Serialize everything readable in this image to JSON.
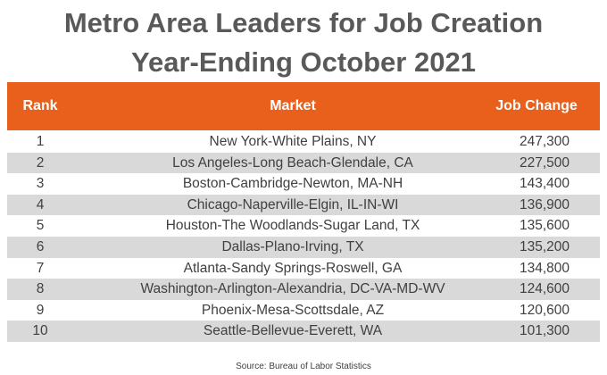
{
  "header": {
    "title_lines": [
      "Metro Area Leaders for Job Creation",
      "Year-Ending October 2021"
    ]
  },
  "table": {
    "columns": [
      "Rank",
      "Market",
      "Job Change"
    ],
    "rows": [
      [
        "1",
        "New York-White Plains, NY",
        "247,300"
      ],
      [
        "2",
        "Los Angeles-Long Beach-Glendale, CA",
        "227,500"
      ],
      [
        "3",
        "Boston-Cambridge-Newton, MA-NH",
        "143,400"
      ],
      [
        "4",
        "Chicago-Naperville-Elgin, IL-IN-WI",
        "136,900"
      ],
      [
        "5",
        "Houston-The Woodlands-Sugar Land, TX",
        "135,600"
      ],
      [
        "6",
        "Dallas-Plano-Irving, TX",
        "135,200"
      ],
      [
        "7",
        "Atlanta-Sandy Springs-Roswell, GA",
        "134,800"
      ],
      [
        "8",
        "Washington-Arlington-Alexandria, DC-VA-MD-WV",
        "124,600"
      ],
      [
        "9",
        "Phoenix-Mesa-Scottsdale, AZ",
        "120,600"
      ],
      [
        "10",
        "Seattle-Bellevue-Everett, WA",
        "101,300"
      ]
    ]
  },
  "source": "Source: Bureau of Labor Statistics"
}
